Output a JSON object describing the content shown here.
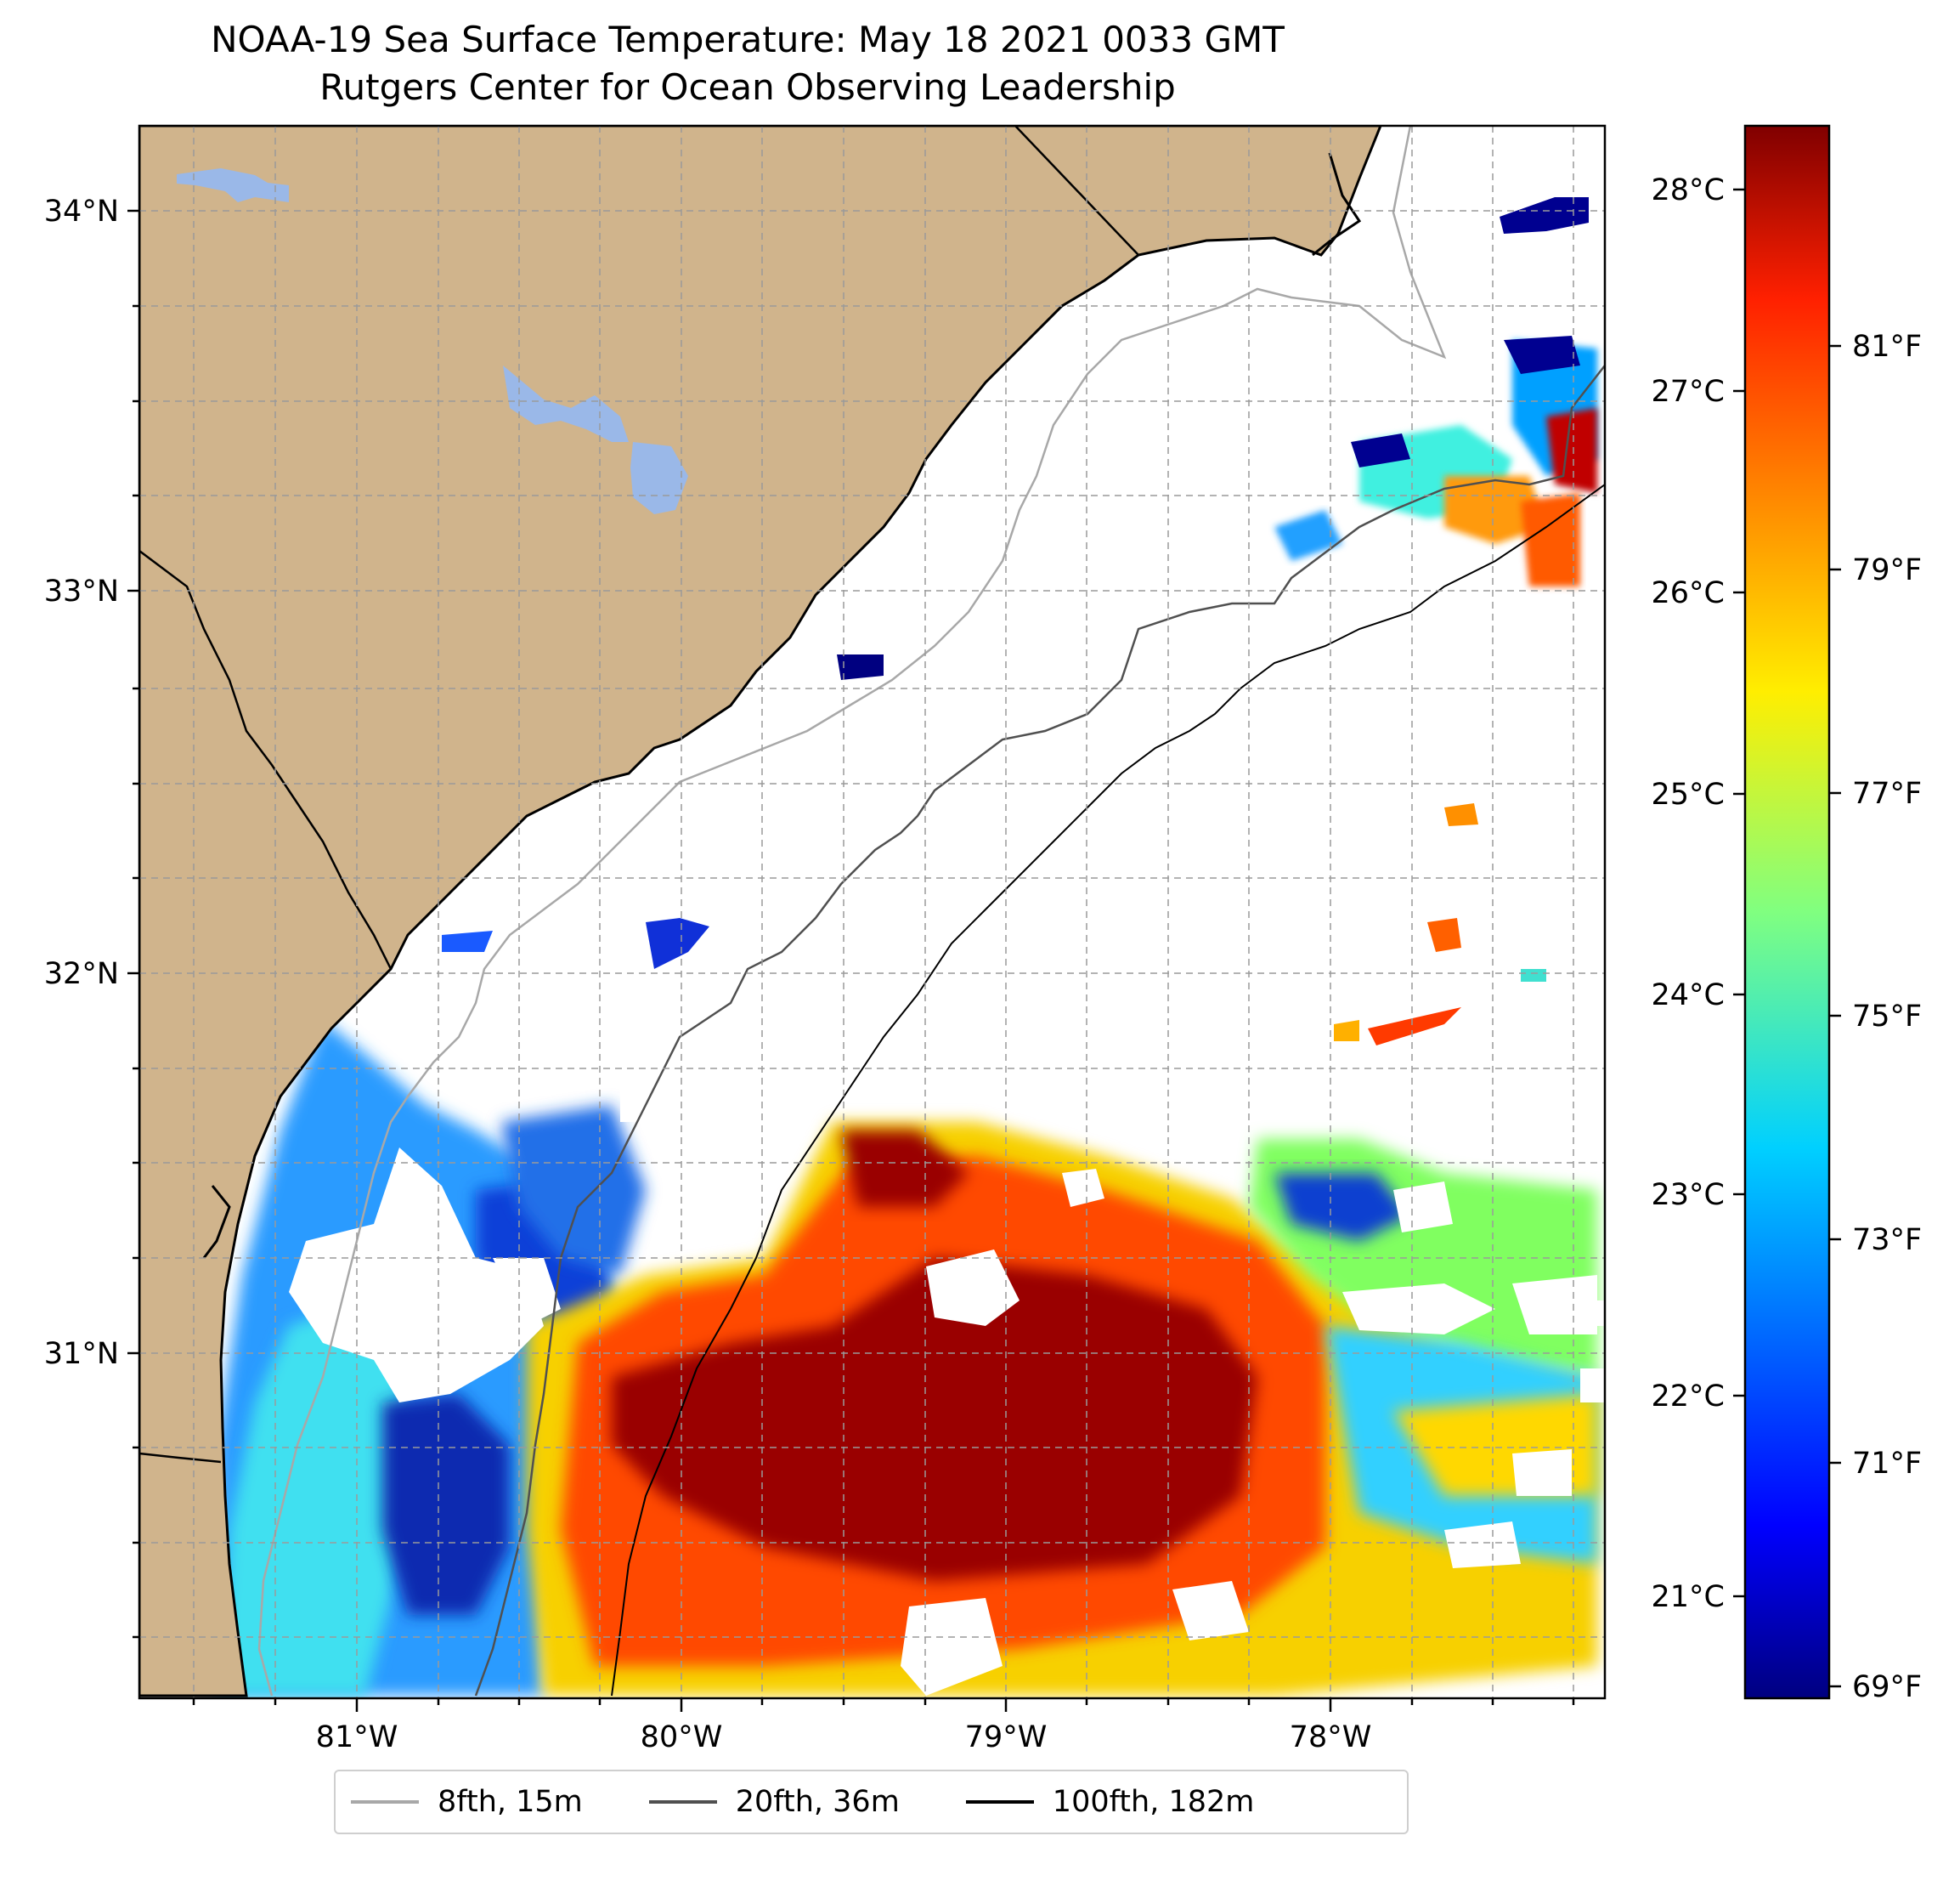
{
  "title": "NOAA-19 Sea Surface Temperature: May 18 2021 0033 GMT",
  "subtitle": "Rutgers Center for Ocean Observing Leadership",
  "map": {
    "lat_range": [
      30.0,
      34.2
    ],
    "lon_range": [
      -81.7,
      -77.1
    ],
    "lat_ticks": [
      {
        "value": 34,
        "label": "34°N"
      },
      {
        "value": 33,
        "label": "33°N"
      },
      {
        "value": 32,
        "label": "32°N"
      },
      {
        "value": 31,
        "label": "31°N"
      }
    ],
    "lon_ticks": [
      {
        "value": -81,
        "label": "81°W"
      },
      {
        "value": -80,
        "label": "80°W"
      },
      {
        "value": -79,
        "label": "79°W"
      },
      {
        "value": -78,
        "label": "78°W"
      }
    ],
    "land_color": "#d0b48c",
    "lake_color": "#9ab8e8",
    "grid": true
  },
  "colorbar": {
    "colormap": "jet",
    "celsius_ticks": [
      {
        "value": 28,
        "label": "28°C"
      },
      {
        "value": 27,
        "label": "27°C"
      },
      {
        "value": 26,
        "label": "26°C"
      },
      {
        "value": 25,
        "label": "25°C"
      },
      {
        "value": 24,
        "label": "24°C"
      },
      {
        "value": 23,
        "label": "23°C"
      },
      {
        "value": 22,
        "label": "22°C"
      },
      {
        "value": 21,
        "label": "21°C"
      }
    ],
    "fahrenheit_ticks": [
      {
        "value": 81,
        "label": "81°F"
      },
      {
        "value": 79,
        "label": "79°F"
      },
      {
        "value": 77,
        "label": "77°F"
      },
      {
        "value": 75,
        "label": "75°F"
      },
      {
        "value": 73,
        "label": "73°F"
      },
      {
        "value": 71,
        "label": "71°F"
      },
      {
        "value": 69,
        "label": "69°F"
      }
    ]
  },
  "legend": [
    {
      "label": "8fth, 15m",
      "color": "#a8a8a8"
    },
    {
      "label": "20fth, 36m",
      "color": "#505050"
    },
    {
      "label": "100fth, 182m",
      "color": "#000000"
    }
  ]
}
